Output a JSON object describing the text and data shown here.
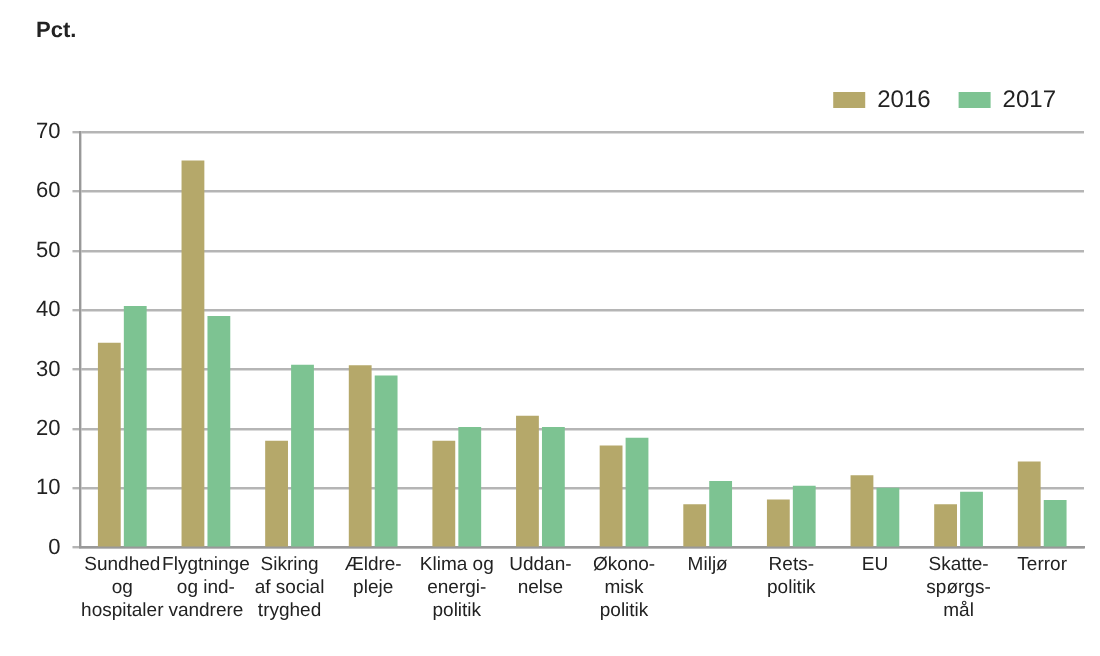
{
  "chart_data": {
    "type": "bar",
    "ylabel": "Pct.",
    "categories": [
      "Sundhed\nog\nhospitaler",
      "Flygtninge\nog ind-\nvandrere",
      "Sikring\naf social\ntryghed",
      "Ældre-\npleje",
      "Klima og\nenergi-\npolitik",
      "Uddan-\nnelse",
      "Økono-\nmisk\npolitik",
      "Miljø",
      "Rets-\npolitik",
      "EU",
      "Skatte-\nspørgs-\nmål",
      "Terror"
    ],
    "series": [
      {
        "name": "2016",
        "color": "#b5a86a",
        "values": [
          34.5,
          65.2,
          18,
          30.7,
          18,
          22.2,
          17.2,
          7.3,
          8.1,
          12.2,
          7.3,
          14.5
        ]
      },
      {
        "name": "2017",
        "color": "#7dc392",
        "values": [
          40.7,
          39,
          30.8,
          29,
          20.3,
          20.3,
          18.5,
          11.2,
          10.4,
          10.1,
          9.4,
          8
        ]
      }
    ],
    "ylim": [
      0,
      70
    ],
    "yticks": [
      0,
      10,
      20,
      30,
      40,
      50,
      60,
      70
    ],
    "grid": "y",
    "legend": "top right"
  }
}
